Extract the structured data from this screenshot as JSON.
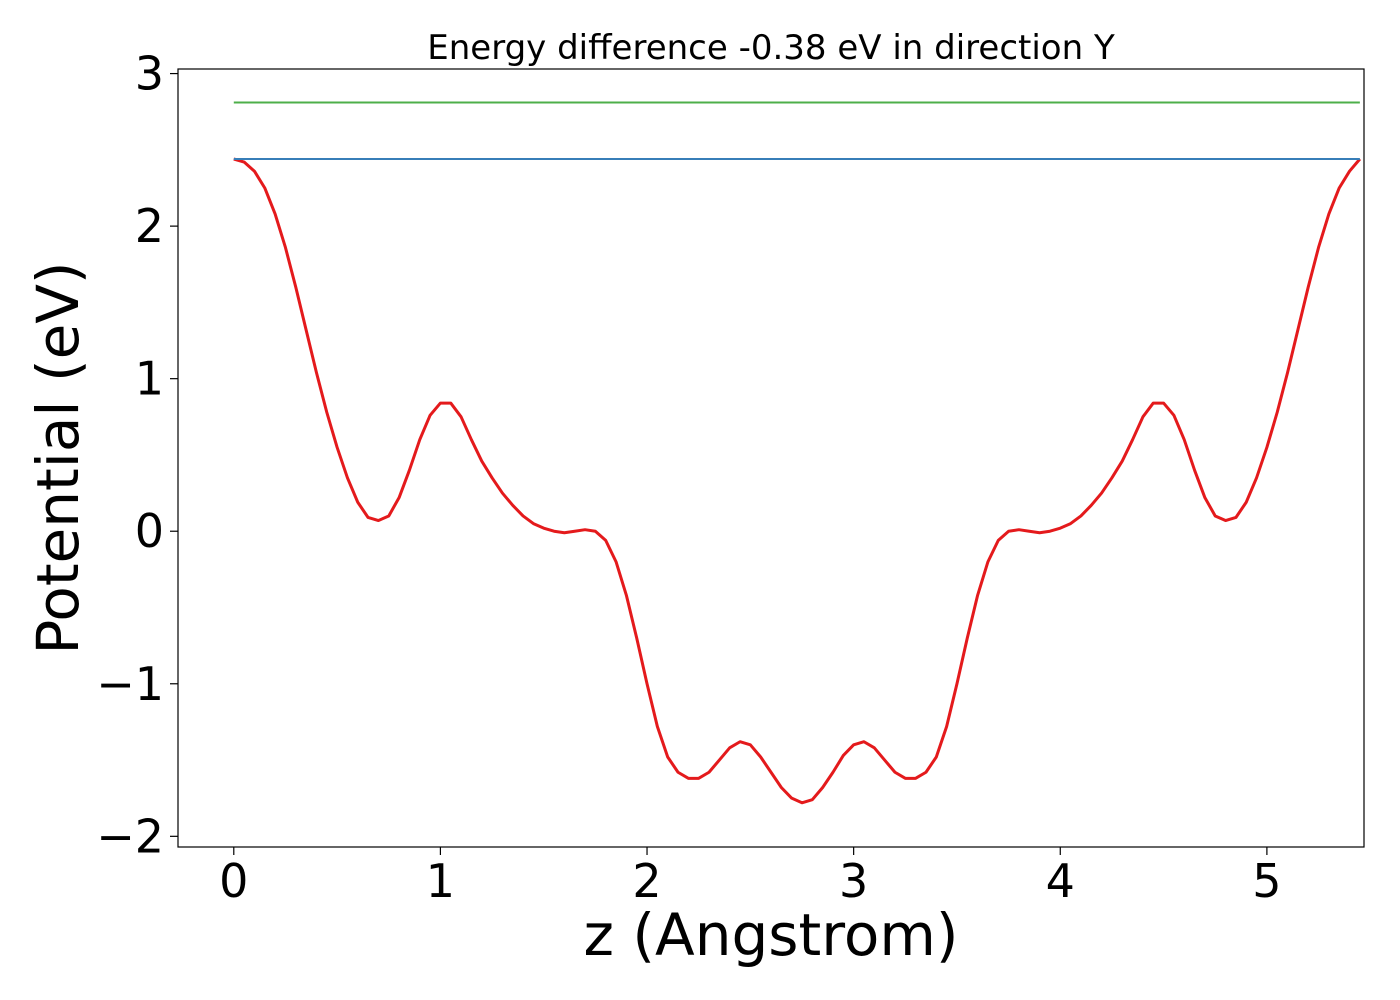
{
  "chart_data": {
    "type": "line",
    "title": "Energy difference -0.38 eV in direction Y",
    "xlabel": "z (Angstrom)",
    "ylabel": "Potential (eV)",
    "xlim": [
      -0.27,
      5.47
    ],
    "ylim": [
      -2.07,
      3.03
    ],
    "xticks": [
      0,
      1,
      2,
      3,
      4,
      5
    ],
    "xtick_labels": [
      "0",
      "1",
      "2",
      "3",
      "4",
      "5"
    ],
    "yticks": [
      -2,
      -1,
      0,
      1,
      2,
      3
    ],
    "ytick_labels": [
      "−2",
      "−1",
      "0",
      "1",
      "2",
      "3"
    ],
    "grid": false,
    "series": [
      {
        "color": "#e41a1c",
        "style": "curve",
        "x": [
          0,
          0.05,
          0.1,
          0.15,
          0.2,
          0.25,
          0.3,
          0.35,
          0.4,
          0.45,
          0.5,
          0.55,
          0.6,
          0.65,
          0.7,
          0.75,
          0.8,
          0.85,
          0.9,
          0.95,
          1.0,
          1.05,
          1.1,
          1.15,
          1.2,
          1.25,
          1.3,
          1.35,
          1.4,
          1.45,
          1.5,
          1.55,
          1.6,
          1.65,
          1.7,
          1.75,
          1.8,
          1.85,
          1.9,
          1.95,
          2.0,
          2.05,
          2.1,
          2.15,
          2.2,
          2.25,
          2.3,
          2.35,
          2.4,
          2.45,
          2.5,
          2.55,
          2.6,
          2.65,
          2.7,
          2.75,
          2.8,
          2.85,
          2.9,
          2.95,
          3.0,
          3.05,
          3.1,
          3.15,
          3.2,
          3.25,
          3.3,
          3.35,
          3.4,
          3.45,
          3.5,
          3.55,
          3.6,
          3.65,
          3.7,
          3.75,
          3.8,
          3.85,
          3.9,
          3.95,
          4.0,
          4.05,
          4.1,
          4.15,
          4.2,
          4.25,
          4.3,
          4.35,
          4.4,
          4.45,
          4.5,
          4.55,
          4.6,
          4.65,
          4.7,
          4.75,
          4.8,
          4.85,
          4.9,
          4.95,
          5.0,
          5.05,
          5.1,
          5.15,
          5.2,
          5.25,
          5.3,
          5.35,
          5.4,
          5.45
        ],
        "y": [
          2.44,
          2.42,
          2.36,
          2.25,
          2.08,
          1.86,
          1.6,
          1.32,
          1.04,
          0.78,
          0.55,
          0.35,
          0.19,
          0.09,
          0.07,
          0.1,
          0.22,
          0.4,
          0.6,
          0.76,
          0.84,
          0.84,
          0.75,
          0.6,
          0.46,
          0.35,
          0.25,
          0.17,
          0.1,
          0.05,
          0.02,
          0.0,
          -0.01,
          0.0,
          0.01,
          0.0,
          -0.06,
          -0.2,
          -0.42,
          -0.7,
          -1.0,
          -1.28,
          -1.48,
          -1.58,
          -1.62,
          -1.62,
          -1.58,
          -1.5,
          -1.42,
          -1.38,
          -1.4,
          -1.48,
          -1.58,
          -1.68,
          -1.75,
          -1.78,
          -1.76,
          -1.68,
          -1.58,
          -1.47,
          -1.4,
          -1.38,
          -1.42,
          -1.5,
          -1.58,
          -1.62,
          -1.62,
          -1.58,
          -1.48,
          -1.28,
          -1.0,
          -0.7,
          -0.42,
          -0.2,
          -0.06,
          0.0,
          0.01,
          0.0,
          -0.01,
          0.0,
          0.02,
          0.05,
          0.1,
          0.17,
          0.25,
          0.35,
          0.46,
          0.6,
          0.75,
          0.84,
          0.84,
          0.76,
          0.6,
          0.4,
          0.22,
          0.1,
          0.07,
          0.09,
          0.19,
          0.35,
          0.55,
          0.78,
          1.04,
          1.32,
          1.6,
          1.86,
          2.08,
          2.25,
          2.36,
          2.44
        ]
      },
      {
        "color": "#377eb8",
        "style": "flat",
        "x": [
          0,
          5.45
        ],
        "y": [
          2.44,
          2.44
        ]
      },
      {
        "color": "#4daf4a",
        "style": "flat",
        "x": [
          0,
          5.45
        ],
        "y": [
          2.81,
          2.81
        ]
      }
    ]
  }
}
